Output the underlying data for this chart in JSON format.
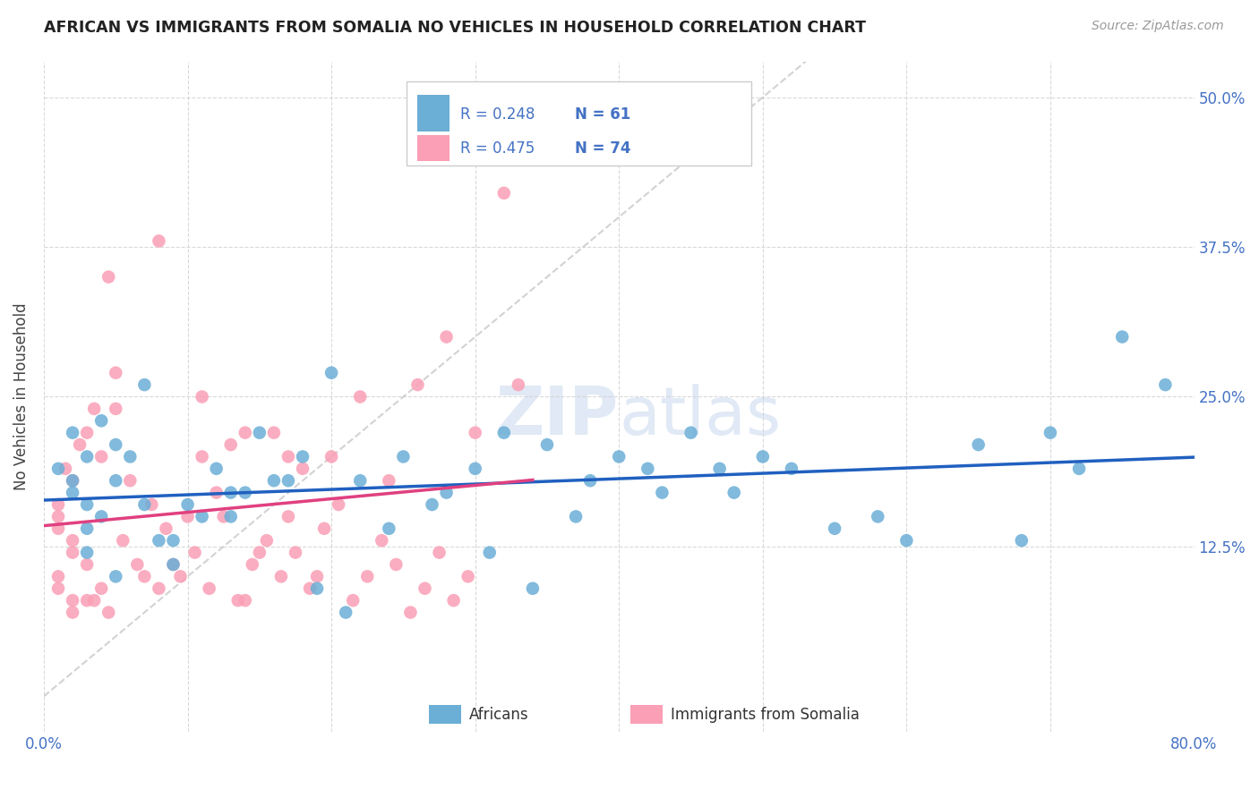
{
  "title": "AFRICAN VS IMMIGRANTS FROM SOMALIA NO VEHICLES IN HOUSEHOLD CORRELATION CHART",
  "source": "Source: ZipAtlas.com",
  "ylabel": "No Vehicles in Household",
  "ytick_labels": [
    "12.5%",
    "25.0%",
    "37.5%",
    "50.0%"
  ],
  "ytick_values": [
    0.125,
    0.25,
    0.375,
    0.5
  ],
  "xlim": [
    0.0,
    0.8
  ],
  "ylim": [
    -0.03,
    0.53
  ],
  "watermark_zip": "ZIP",
  "watermark_atlas": "atlas",
  "color_blue": "#6baed6",
  "color_pink": "#fa9fb5",
  "color_blue_text": "#4472C4",
  "trend_blue_color": "#2060C0",
  "trend_pink_color": "#E04080",
  "trend_diag_color": "#C0C0C0",
  "africans_x": [
    0.02,
    0.03,
    0.04,
    0.02,
    0.03,
    0.01,
    0.02,
    0.03,
    0.05,
    0.04,
    0.06,
    0.07,
    0.05,
    0.08,
    0.09,
    0.1,
    0.12,
    0.15,
    0.13,
    0.14,
    0.16,
    0.18,
    0.2,
    0.22,
    0.25,
    0.28,
    0.3,
    0.32,
    0.35,
    0.38,
    0.4,
    0.42,
    0.45,
    0.48,
    0.5,
    0.52,
    0.55,
    0.58,
    0.6,
    0.65,
    0.68,
    0.7,
    0.72,
    0.75,
    0.78,
    0.03,
    0.05,
    0.07,
    0.09,
    0.11,
    0.13,
    0.17,
    0.19,
    0.21,
    0.24,
    0.27,
    0.31,
    0.34,
    0.37,
    0.43,
    0.47
  ],
  "africans_y": [
    0.18,
    0.2,
    0.15,
    0.22,
    0.16,
    0.19,
    0.17,
    0.14,
    0.21,
    0.23,
    0.2,
    0.26,
    0.18,
    0.13,
    0.11,
    0.16,
    0.19,
    0.22,
    0.15,
    0.17,
    0.18,
    0.2,
    0.27,
    0.18,
    0.2,
    0.17,
    0.19,
    0.22,
    0.21,
    0.18,
    0.2,
    0.19,
    0.22,
    0.17,
    0.2,
    0.19,
    0.14,
    0.15,
    0.13,
    0.21,
    0.13,
    0.22,
    0.19,
    0.3,
    0.26,
    0.12,
    0.1,
    0.16,
    0.13,
    0.15,
    0.17,
    0.18,
    0.09,
    0.07,
    0.14,
    0.16,
    0.12,
    0.09,
    0.15,
    0.17,
    0.19
  ],
  "somalia_x": [
    0.01,
    0.01,
    0.02,
    0.02,
    0.01,
    0.02,
    0.03,
    0.01,
    0.02,
    0.01,
    0.02,
    0.03,
    0.04,
    0.03,
    0.04,
    0.05,
    0.06,
    0.07,
    0.08,
    0.09,
    0.1,
    0.11,
    0.12,
    0.13,
    0.14,
    0.15,
    0.16,
    0.17,
    0.18,
    0.19,
    0.2,
    0.22,
    0.24,
    0.26,
    0.28,
    0.3,
    0.32,
    0.33,
    0.035,
    0.045,
    0.055,
    0.065,
    0.075,
    0.085,
    0.095,
    0.105,
    0.115,
    0.125,
    0.135,
    0.145,
    0.155,
    0.165,
    0.175,
    0.185,
    0.195,
    0.205,
    0.215,
    0.225,
    0.235,
    0.245,
    0.255,
    0.265,
    0.275,
    0.285,
    0.295,
    0.015,
    0.025,
    0.035,
    0.045,
    0.05,
    0.08,
    0.11,
    0.14,
    0.17
  ],
  "somalia_y": [
    0.14,
    0.1,
    0.12,
    0.08,
    0.16,
    0.13,
    0.11,
    0.09,
    0.07,
    0.15,
    0.18,
    0.08,
    0.09,
    0.22,
    0.2,
    0.24,
    0.18,
    0.1,
    0.09,
    0.11,
    0.15,
    0.2,
    0.17,
    0.21,
    0.08,
    0.12,
    0.22,
    0.15,
    0.19,
    0.1,
    0.2,
    0.25,
    0.18,
    0.26,
    0.3,
    0.22,
    0.42,
    0.26,
    0.08,
    0.07,
    0.13,
    0.11,
    0.16,
    0.14,
    0.1,
    0.12,
    0.09,
    0.15,
    0.08,
    0.11,
    0.13,
    0.1,
    0.12,
    0.09,
    0.14,
    0.16,
    0.08,
    0.1,
    0.13,
    0.11,
    0.07,
    0.09,
    0.12,
    0.08,
    0.1,
    0.19,
    0.21,
    0.24,
    0.35,
    0.27,
    0.38,
    0.25,
    0.22,
    0.2
  ]
}
